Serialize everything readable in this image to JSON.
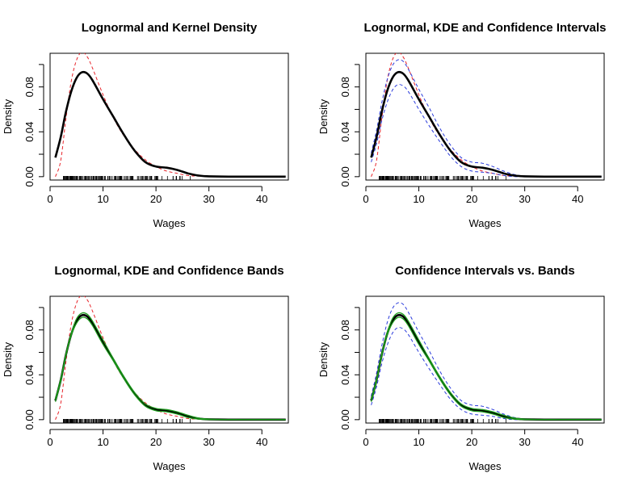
{
  "chart_data": [
    {
      "type": "line",
      "title": "Lognormal and Kernel Density",
      "xlabel": "Wages",
      "ylabel": "Density",
      "xlim": [
        0,
        45
      ],
      "ylim": [
        -0.003,
        0.11
      ],
      "xticks": [
        "10",
        "20",
        "30",
        "40"
      ],
      "yticks": [
        "0.00",
        "0.04",
        "0.08"
      ],
      "series": [
        {
          "role": "kde",
          "color": "#000000",
          "style": "solid",
          "x": [
            1,
            2,
            3,
            4,
            5,
            6,
            7,
            8,
            10,
            12,
            14,
            16,
            18,
            20,
            22,
            24,
            26,
            28,
            30,
            35,
            40,
            44.5
          ],
          "y": [
            0.017,
            0.035,
            0.058,
            0.076,
            0.088,
            0.093,
            0.092,
            0.086,
            0.069,
            0.053,
            0.037,
            0.023,
            0.013,
            0.009,
            0.008,
            0.006,
            0.003,
            0.001,
            0.0003,
            0.0,
            0.0,
            0.0
          ]
        },
        {
          "role": "lognormal",
          "color": "#e8262c",
          "style": "dashed",
          "x": [
            1,
            2,
            3,
            4,
            5,
            6,
            7,
            8,
            10,
            12,
            14,
            16,
            18,
            20,
            22,
            24,
            26,
            28,
            30,
            35,
            40,
            44.5
          ],
          "y": [
            0.0,
            0.014,
            0.052,
            0.085,
            0.104,
            0.111,
            0.107,
            0.097,
            0.073,
            0.052,
            0.036,
            0.024,
            0.015,
            0.009,
            0.005,
            0.003,
            0.001,
            0.0005,
            0.0002,
            0.0,
            0.0,
            0.0
          ]
        }
      ],
      "rug_color": "#000000"
    },
    {
      "type": "line",
      "title": "Lognormal, KDE and Confidence Intervals",
      "xlabel": "Wages",
      "ylabel": "Density",
      "xlim": [
        0,
        45
      ],
      "ylim": [
        -0.003,
        0.11
      ],
      "xticks": [
        "10",
        "20",
        "30",
        "40"
      ],
      "yticks": [
        "0.00",
        "0.04",
        "0.08"
      ],
      "series": [
        {
          "role": "kde",
          "color": "#000000",
          "style": "solid",
          "x": [
            1,
            2,
            3,
            4,
            5,
            6,
            7,
            8,
            10,
            12,
            14,
            16,
            18,
            20,
            22,
            24,
            26,
            28,
            30,
            35,
            40,
            44.5
          ],
          "y": [
            0.017,
            0.035,
            0.058,
            0.076,
            0.088,
            0.093,
            0.092,
            0.086,
            0.069,
            0.053,
            0.037,
            0.023,
            0.013,
            0.009,
            0.008,
            0.006,
            0.003,
            0.001,
            0.0003,
            0.0,
            0.0,
            0.0
          ]
        },
        {
          "role": "lognormal",
          "color": "#e8262c",
          "style": "dashed",
          "x": [
            1,
            2,
            3,
            4,
            5,
            6,
            7,
            8,
            10,
            12,
            14,
            16,
            18,
            20,
            22,
            24,
            26,
            28,
            30,
            35,
            40,
            44.5
          ],
          "y": [
            0.0,
            0.014,
            0.052,
            0.085,
            0.104,
            0.111,
            0.107,
            0.097,
            0.073,
            0.052,
            0.036,
            0.024,
            0.015,
            0.009,
            0.005,
            0.003,
            0.001,
            0.0005,
            0.0002,
            0.0,
            0.0,
            0.0
          ]
        },
        {
          "role": "ci-upper",
          "color": "#2b3cdc",
          "style": "dashed",
          "x": [
            1,
            2,
            3,
            4,
            5,
            6,
            7,
            8,
            10,
            12,
            14,
            16,
            18,
            20,
            22,
            24,
            26,
            28,
            30,
            35,
            40,
            44.5
          ],
          "y": [
            0.021,
            0.041,
            0.066,
            0.086,
            0.099,
            0.104,
            0.103,
            0.096,
            0.078,
            0.061,
            0.043,
            0.028,
            0.017,
            0.013,
            0.012,
            0.009,
            0.005,
            0.002,
            0.0007,
            0.0001,
            0.0,
            0.0
          ]
        },
        {
          "role": "ci-lower",
          "color": "#2b3cdc",
          "style": "dashed",
          "x": [
            1,
            2,
            3,
            4,
            5,
            6,
            7,
            8,
            10,
            12,
            14,
            16,
            18,
            20,
            22,
            24,
            26,
            28,
            30,
            35,
            40,
            44.5
          ],
          "y": [
            0.013,
            0.029,
            0.05,
            0.066,
            0.077,
            0.082,
            0.081,
            0.076,
            0.06,
            0.045,
            0.031,
            0.018,
            0.009,
            0.005,
            0.004,
            0.003,
            0.001,
            0.0,
            0.0,
            0.0,
            0.0,
            0.0
          ]
        }
      ],
      "rug_color": "#000000"
    },
    {
      "type": "line",
      "title": "Lognormal, KDE and Confidence Bands",
      "xlabel": "Wages",
      "ylabel": "Density",
      "xlim": [
        0,
        45
      ],
      "ylim": [
        -0.003,
        0.11
      ],
      "xticks": [
        "10",
        "20",
        "30",
        "40"
      ],
      "yticks": [
        "0.00",
        "0.04",
        "0.08"
      ],
      "series": [
        {
          "role": "kde",
          "color": "#000000",
          "style": "solid",
          "x": [
            1,
            2,
            3,
            4,
            5,
            6,
            7,
            8,
            10,
            12,
            14,
            16,
            18,
            20,
            22,
            24,
            26,
            28,
            30,
            35,
            40,
            44.5
          ],
          "y": [
            0.017,
            0.035,
            0.058,
            0.076,
            0.088,
            0.093,
            0.092,
            0.086,
            0.069,
            0.053,
            0.037,
            0.023,
            0.013,
            0.009,
            0.008,
            0.006,
            0.003,
            0.001,
            0.0003,
            0.0,
            0.0,
            0.0
          ]
        },
        {
          "role": "lognormal",
          "color": "#e8262c",
          "style": "dashed",
          "x": [
            1,
            2,
            3,
            4,
            5,
            6,
            7,
            8,
            10,
            12,
            14,
            16,
            18,
            20,
            22,
            24,
            26,
            28,
            30,
            35,
            40,
            44.5
          ],
          "y": [
            0.0,
            0.014,
            0.052,
            0.085,
            0.104,
            0.111,
            0.107,
            0.097,
            0.073,
            0.052,
            0.036,
            0.024,
            0.015,
            0.009,
            0.005,
            0.003,
            0.001,
            0.0005,
            0.0002,
            0.0,
            0.0,
            0.0
          ]
        },
        {
          "role": "band-upper",
          "color": "#1a9a1a",
          "style": "solid",
          "x": [
            1,
            2,
            3,
            4,
            5,
            6,
            7,
            8,
            10,
            12,
            14,
            16,
            18,
            20,
            22,
            24,
            26,
            28,
            30,
            35,
            40,
            44.5
          ],
          "y": [
            0.018,
            0.036,
            0.059,
            0.077,
            0.09,
            0.095,
            0.094,
            0.088,
            0.071,
            0.054,
            0.038,
            0.024,
            0.014,
            0.01,
            0.009,
            0.007,
            0.004,
            0.0015,
            0.0005,
            0.0001,
            0.0,
            0.0
          ]
        },
        {
          "role": "band-lower",
          "color": "#1a9a1a",
          "style": "solid",
          "x": [
            1,
            2,
            3,
            4,
            5,
            6,
            7,
            8,
            10,
            12,
            14,
            16,
            18,
            20,
            22,
            24,
            26,
            28,
            30,
            35,
            40,
            44.5
          ],
          "y": [
            0.016,
            0.034,
            0.057,
            0.075,
            0.086,
            0.091,
            0.09,
            0.084,
            0.067,
            0.052,
            0.036,
            0.022,
            0.012,
            0.008,
            0.007,
            0.005,
            0.002,
            0.0005,
            0.0001,
            0.0,
            0.0,
            0.0
          ]
        }
      ],
      "rug_color": "#000000"
    },
    {
      "type": "line",
      "title": "Confidence Intervals vs. Bands",
      "xlabel": "Wages",
      "ylabel": "Density",
      "xlim": [
        0,
        45
      ],
      "ylim": [
        -0.003,
        0.11
      ],
      "xticks": [
        "10",
        "20",
        "30",
        "40"
      ],
      "yticks": [
        "0.00",
        "0.04",
        "0.08"
      ],
      "series": [
        {
          "role": "kde",
          "color": "#000000",
          "style": "solid",
          "x": [
            1,
            2,
            3,
            4,
            5,
            6,
            7,
            8,
            10,
            12,
            14,
            16,
            18,
            20,
            22,
            24,
            26,
            28,
            30,
            35,
            40,
            44.5
          ],
          "y": [
            0.017,
            0.035,
            0.058,
            0.076,
            0.088,
            0.093,
            0.092,
            0.086,
            0.069,
            0.053,
            0.037,
            0.023,
            0.013,
            0.009,
            0.008,
            0.006,
            0.003,
            0.001,
            0.0003,
            0.0,
            0.0,
            0.0
          ]
        },
        {
          "role": "ci-upper",
          "color": "#2b3cdc",
          "style": "dashed",
          "x": [
            1,
            2,
            3,
            4,
            5,
            6,
            7,
            8,
            10,
            12,
            14,
            16,
            18,
            20,
            22,
            24,
            26,
            28,
            30,
            35,
            40,
            44.5
          ],
          "y": [
            0.021,
            0.041,
            0.066,
            0.086,
            0.099,
            0.104,
            0.103,
            0.096,
            0.078,
            0.061,
            0.043,
            0.028,
            0.017,
            0.013,
            0.012,
            0.009,
            0.005,
            0.002,
            0.0007,
            0.0001,
            0.0,
            0.0
          ]
        },
        {
          "role": "ci-lower",
          "color": "#2b3cdc",
          "style": "dashed",
          "x": [
            1,
            2,
            3,
            4,
            5,
            6,
            7,
            8,
            10,
            12,
            14,
            16,
            18,
            20,
            22,
            24,
            26,
            28,
            30,
            35,
            40,
            44.5
          ],
          "y": [
            0.013,
            0.029,
            0.05,
            0.066,
            0.077,
            0.082,
            0.081,
            0.076,
            0.06,
            0.045,
            0.031,
            0.018,
            0.009,
            0.005,
            0.004,
            0.003,
            0.001,
            0.0,
            0.0,
            0.0,
            0.0,
            0.0
          ]
        },
        {
          "role": "band-upper",
          "color": "#1a9a1a",
          "style": "solid",
          "x": [
            1,
            2,
            3,
            4,
            5,
            6,
            7,
            8,
            10,
            12,
            14,
            16,
            18,
            20,
            22,
            24,
            26,
            28,
            30,
            35,
            40,
            44.5
          ],
          "y": [
            0.018,
            0.036,
            0.059,
            0.077,
            0.09,
            0.095,
            0.094,
            0.088,
            0.071,
            0.054,
            0.038,
            0.024,
            0.014,
            0.01,
            0.009,
            0.007,
            0.004,
            0.0015,
            0.0005,
            0.0001,
            0.0,
            0.0
          ]
        },
        {
          "role": "band-lower",
          "color": "#1a9a1a",
          "style": "solid",
          "x": [
            1,
            2,
            3,
            4,
            5,
            6,
            7,
            8,
            10,
            12,
            14,
            16,
            18,
            20,
            22,
            24,
            26,
            28,
            30,
            35,
            40,
            44.5
          ],
          "y": [
            0.016,
            0.034,
            0.057,
            0.075,
            0.086,
            0.091,
            0.09,
            0.084,
            0.067,
            0.052,
            0.036,
            0.022,
            0.012,
            0.008,
            0.007,
            0.005,
            0.002,
            0.0005,
            0.0001,
            0.0,
            0.0,
            0.0
          ]
        }
      ],
      "rug_color": "#000000"
    }
  ]
}
